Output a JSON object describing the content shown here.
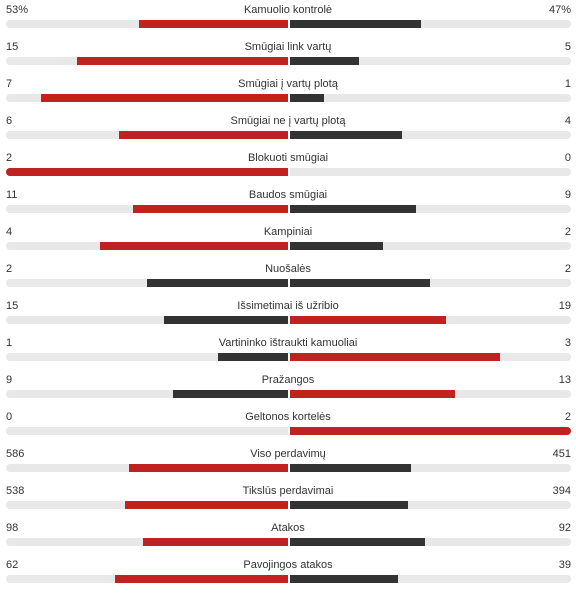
{
  "colors": {
    "home_win": "#c0221f",
    "away_win": "#c0221f",
    "loser": "#333333",
    "track": "#e8e8e8"
  },
  "stats": [
    {
      "label": "Kamuolio kontrolė",
      "left": "53%",
      "right": "47%",
      "left_value": 53,
      "right_value": 47
    },
    {
      "label": "Smūgiai link vartų",
      "left": "15",
      "right": "5",
      "left_value": 15,
      "right_value": 5
    },
    {
      "label": "Smūgiai į vartų plotą",
      "left": "7",
      "right": "1",
      "left_value": 7,
      "right_value": 1
    },
    {
      "label": "Smūgiai ne į vartų plotą",
      "left": "6",
      "right": "4",
      "left_value": 6,
      "right_value": 4
    },
    {
      "label": "Blokuoti smūgiai",
      "left": "2",
      "right": "0",
      "left_value": 2,
      "right_value": 0
    },
    {
      "label": "Baudos smūgiai",
      "left": "11",
      "right": "9",
      "left_value": 11,
      "right_value": 9
    },
    {
      "label": "Kampiniai",
      "left": "4",
      "right": "2",
      "left_value": 4,
      "right_value": 2
    },
    {
      "label": "Nuošalės",
      "left": "2",
      "right": "2",
      "left_value": 2,
      "right_value": 2
    },
    {
      "label": "Išsimetimai iš užribio",
      "left": "15",
      "right": "19",
      "left_value": 15,
      "right_value": 19
    },
    {
      "label": "Vartininko ištraukti kamuoliai",
      "left": "1",
      "right": "3",
      "left_value": 1,
      "right_value": 3
    },
    {
      "label": "Pražangos",
      "left": "9",
      "right": "13",
      "left_value": 9,
      "right_value": 13
    },
    {
      "label": "Geltonos kortelės",
      "left": "0",
      "right": "2",
      "left_value": 0,
      "right_value": 2
    },
    {
      "label": "Viso perdavimų",
      "left": "586",
      "right": "451",
      "left_value": 586,
      "right_value": 451
    },
    {
      "label": "Tikslūs perdavimai",
      "left": "538",
      "right": "394",
      "left_value": 538,
      "right_value": 394
    },
    {
      "label": "Atakos",
      "left": "98",
      "right": "92",
      "left_value": 98,
      "right_value": 92
    },
    {
      "label": "Pavojingos atakos",
      "left": "62",
      "right": "39",
      "left_value": 62,
      "right_value": 39
    }
  ]
}
